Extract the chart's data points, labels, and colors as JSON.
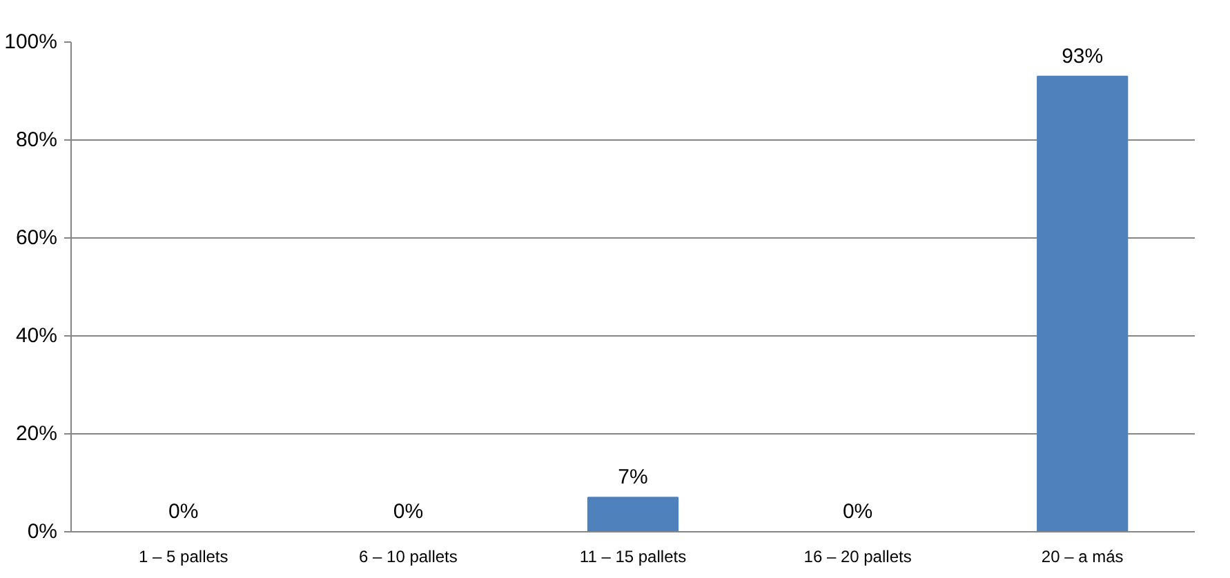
{
  "chart_data": {
    "type": "bar",
    "categories": [
      "1 – 5 pallets",
      "6 – 10 pallets",
      "11 – 15 pallets",
      "16 – 20 pallets",
      "20 – a más"
    ],
    "values": [
      0,
      0,
      7,
      0,
      93
    ],
    "value_labels": [
      "0%",
      "0%",
      "7%",
      "0%",
      "93%"
    ],
    "color": "#4f81bd",
    "ylim": [
      0,
      100
    ],
    "yticks": [
      {
        "value": 0,
        "label": "0%"
      },
      {
        "value": 20,
        "label": "20%"
      },
      {
        "value": 40,
        "label": "40%"
      },
      {
        "value": 60,
        "label": "60%"
      },
      {
        "value": 80,
        "label": "80%"
      },
      {
        "value": 100,
        "label": "100%"
      }
    ],
    "grid": "y"
  }
}
